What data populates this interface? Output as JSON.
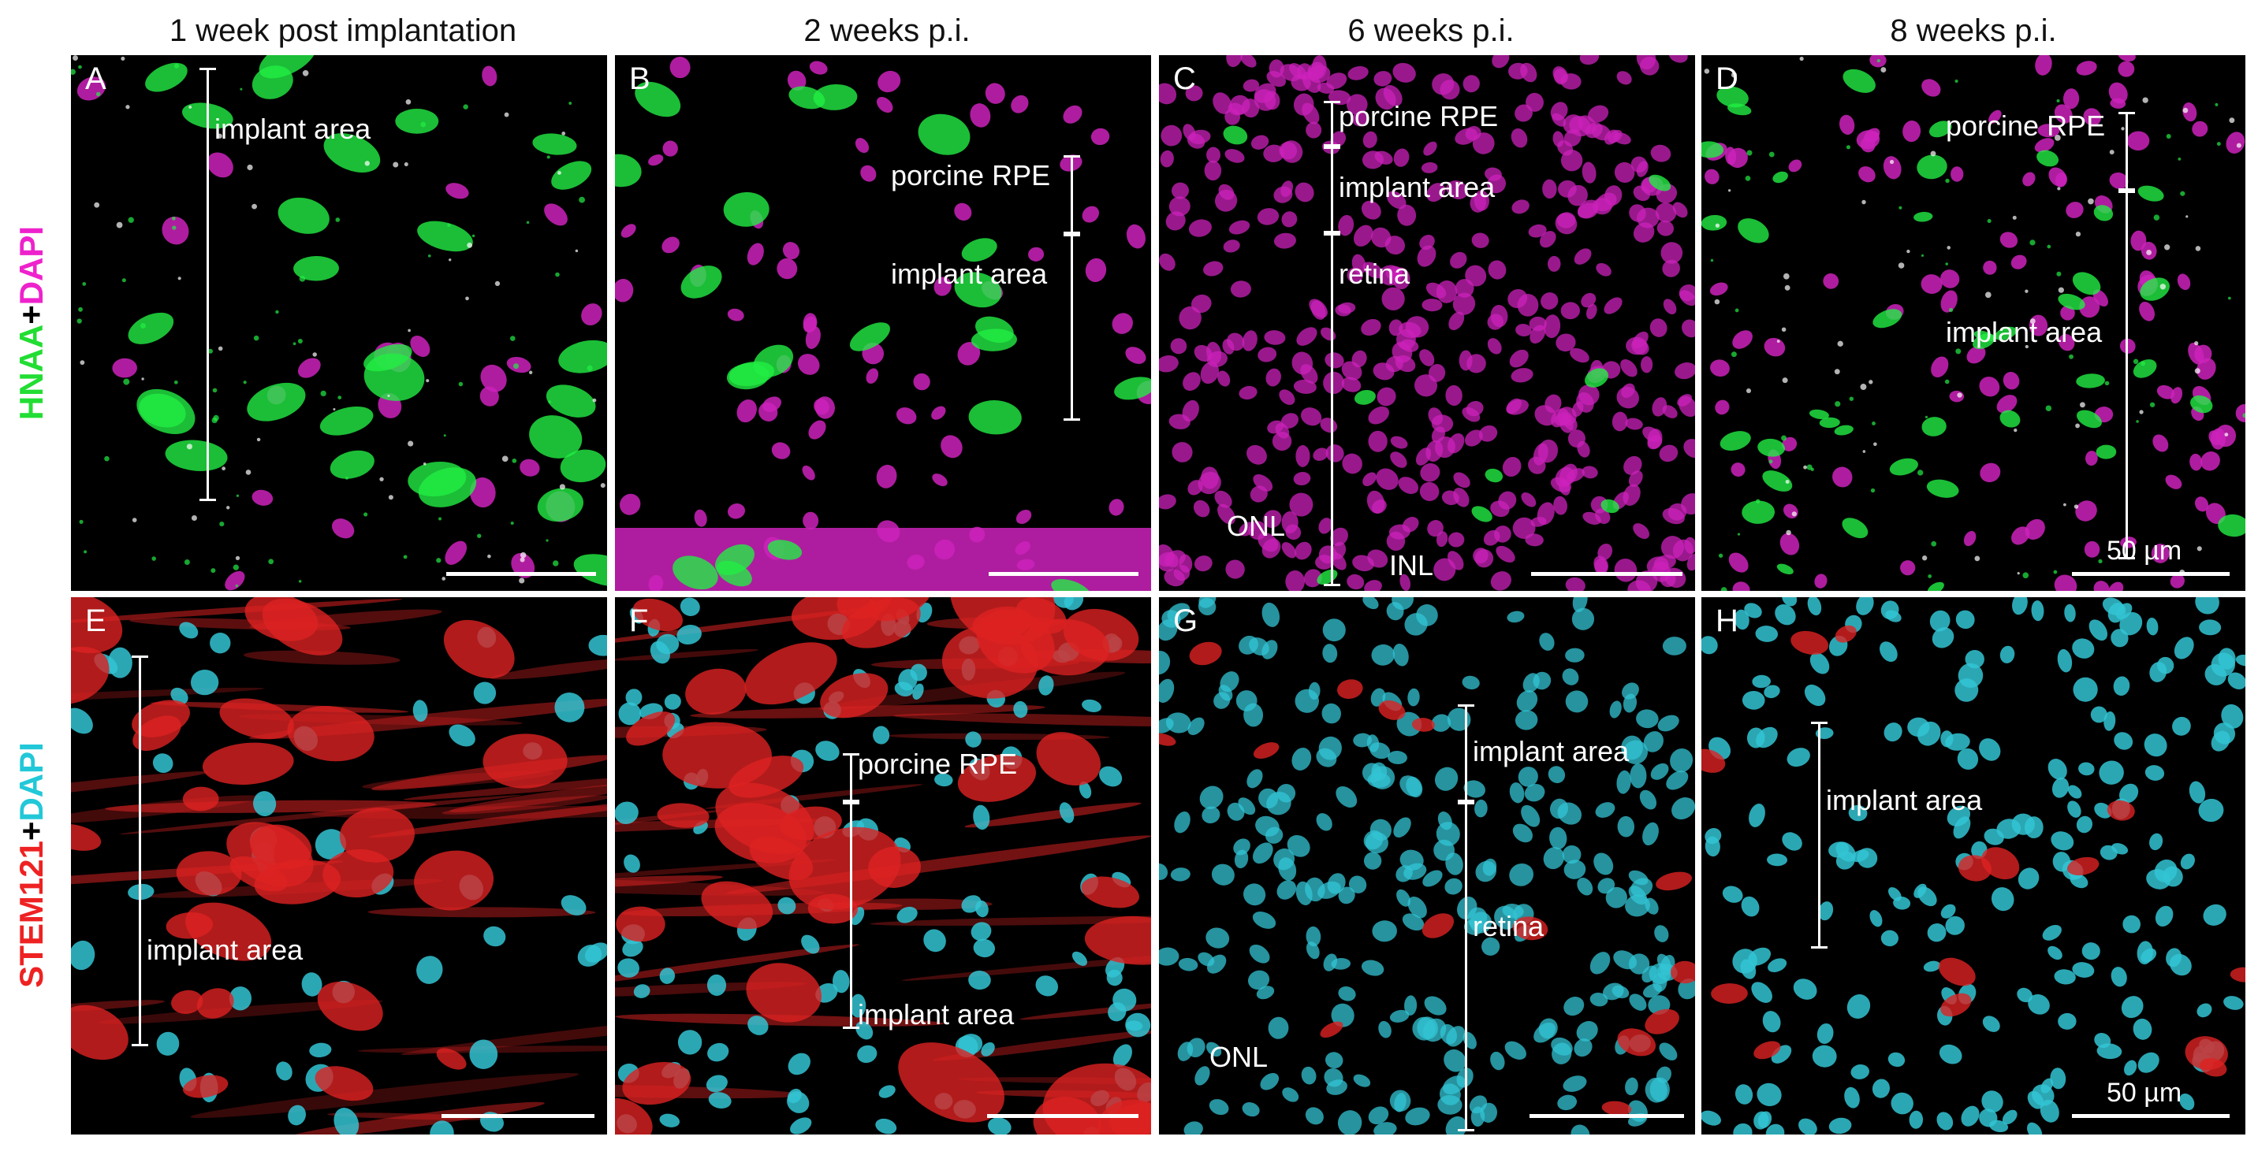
{
  "columns": [
    "1 week post implantation",
    "2 weeks p.i.",
    "6 weeks p.i.",
    "8 weeks p.i."
  ],
  "row_labels": {
    "top": {
      "marker": "HNAA",
      "plus": "+",
      "stain": "DAPI",
      "marker_color": "#00dd33",
      "stain_color": "#ee22cc"
    },
    "bottom": {
      "marker": "STEM121",
      "plus": "+",
      "stain": "DAPI",
      "marker_color": "#ee2222",
      "stain_color": "#22ccdd"
    }
  },
  "panels": {
    "A": {
      "letter": "A",
      "annotations": [
        "implant area"
      ]
    },
    "B": {
      "letter": "B",
      "annotations": [
        "porcine RPE",
        "implant area"
      ]
    },
    "C": {
      "letter": "C",
      "annotations": [
        "porcine RPE",
        "implant area",
        "retina",
        "ONL",
        "INL"
      ]
    },
    "D": {
      "letter": "D",
      "annotations": [
        "porcine RPE",
        "implant area"
      ],
      "scale": "50 µm"
    },
    "E": {
      "letter": "E",
      "annotations": [
        "implant area"
      ]
    },
    "F": {
      "letter": "F",
      "annotations": [
        "porcine RPE",
        "implant area"
      ]
    },
    "G": {
      "letter": "G",
      "annotations": [
        "implant area",
        "retina",
        "ONL"
      ]
    },
    "H": {
      "letter": "H",
      "annotations": [
        "implant area"
      ],
      "scale": "50 µm"
    }
  },
  "colors": {
    "hnaa": "#22ee44",
    "dapi_magenta": "#cc22bb",
    "stem121": "#dd2222",
    "dapi_cyan": "#33c4d4"
  }
}
